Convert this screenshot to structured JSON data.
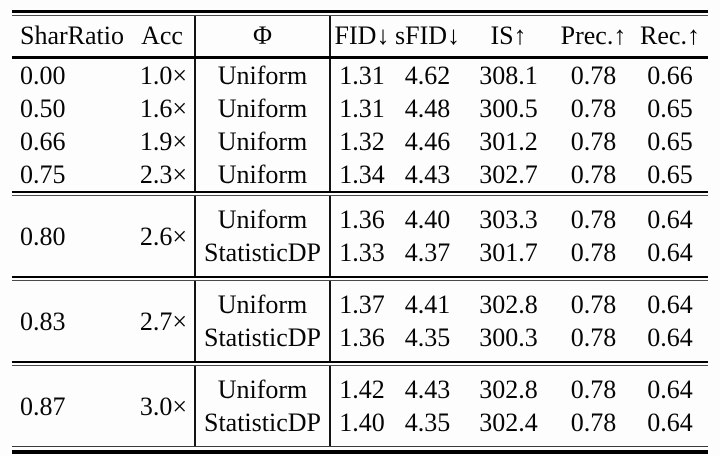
{
  "table": {
    "columns": [
      "SharRatio",
      "Acc",
      "Φ",
      "FID↓",
      "sFID↓",
      "IS↑",
      "Prec.↑",
      "Rec.↑"
    ],
    "single_rows": [
      {
        "shar": "0.00",
        "acc": "1.0×",
        "phi": "Uniform",
        "fid": "1.31",
        "sfid": "4.62",
        "is": "308.1",
        "prec": "0.78",
        "rec": "0.66"
      },
      {
        "shar": "0.50",
        "acc": "1.6×",
        "phi": "Uniform",
        "fid": "1.31",
        "sfid": "4.48",
        "is": "300.5",
        "prec": "0.78",
        "rec": "0.65"
      },
      {
        "shar": "0.66",
        "acc": "1.9×",
        "phi": "Uniform",
        "fid": "1.32",
        "sfid": "4.46",
        "is": "301.2",
        "prec": "0.78",
        "rec": "0.65"
      },
      {
        "shar": "0.75",
        "acc": "2.3×",
        "phi": "Uniform",
        "fid": "1.34",
        "sfid": "4.43",
        "is": "302.7",
        "prec": "0.78",
        "rec": "0.65"
      }
    ],
    "groups": [
      {
        "shar": "0.80",
        "acc": "2.6×",
        "rows": [
          {
            "phi": "Uniform",
            "fid": "1.36",
            "sfid": "4.40",
            "is": "303.3",
            "prec": "0.78",
            "rec": "0.64"
          },
          {
            "phi": "StatisticDP",
            "fid": "1.33",
            "sfid": "4.37",
            "is": "301.7",
            "prec": "0.78",
            "rec": "0.64"
          }
        ]
      },
      {
        "shar": "0.83",
        "acc": "2.7×",
        "rows": [
          {
            "phi": "Uniform",
            "fid": "1.37",
            "sfid": "4.41",
            "is": "302.8",
            "prec": "0.78",
            "rec": "0.64"
          },
          {
            "phi": "StatisticDP",
            "fid": "1.36",
            "sfid": "4.35",
            "is": "300.3",
            "prec": "0.78",
            "rec": "0.64"
          }
        ]
      },
      {
        "shar": "0.87",
        "acc": "3.0×",
        "rows": [
          {
            "phi": "Uniform",
            "fid": "1.42",
            "sfid": "4.43",
            "is": "302.8",
            "prec": "0.78",
            "rec": "0.64"
          },
          {
            "phi": "StatisticDP",
            "fid": "1.40",
            "sfid": "4.35",
            "is": "302.4",
            "prec": "0.78",
            "rec": "0.64"
          }
        ]
      }
    ]
  }
}
